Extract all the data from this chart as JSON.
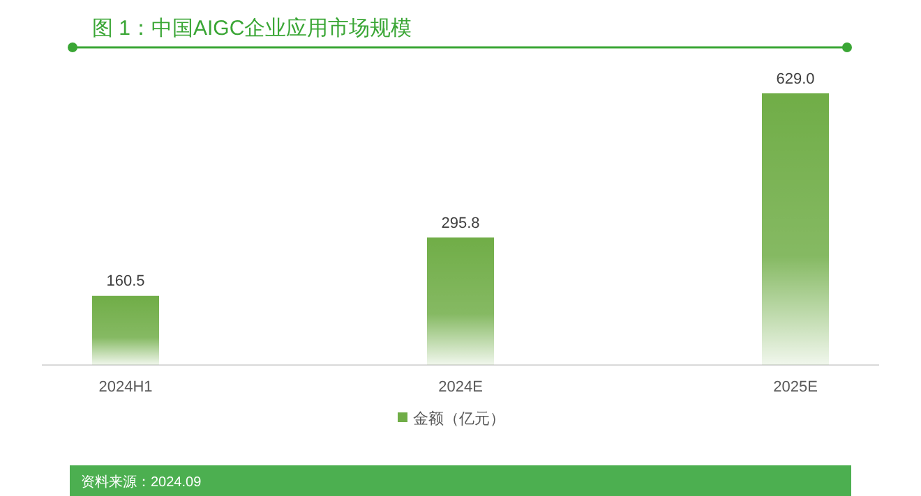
{
  "chart_data": {
    "type": "bar",
    "title": "图 1：中国AIGC企业应用市场规模",
    "categories": [
      "2024H1",
      "2024E",
      "2025E"
    ],
    "series": [
      {
        "name": "金额（亿元）",
        "color": "#70ad47",
        "values": [
          160.5,
          295.8,
          629.0
        ],
        "value_labels": [
          "160.5",
          "295.8",
          "629.0"
        ]
      }
    ],
    "legend": "bottom",
    "annotations": [
      "资料来源：2024.09"
    ]
  }
}
